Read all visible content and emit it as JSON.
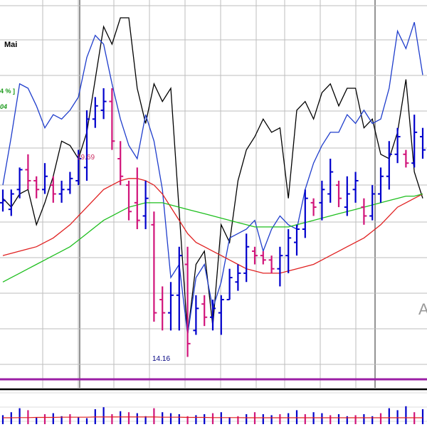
{
  "header": {
    "month_label": "Mai",
    "percent_fragment": "4 % ]",
    "value_fragment": "04",
    "watermark_fragment": "A"
  },
  "chart_data": {
    "type": "candlestick",
    "y_range": [
      13.2,
      21.2
    ],
    "x_range": [
      0,
      50
    ],
    "grid": true,
    "annotations": [
      {
        "text": "19.69",
        "x": 9.5,
        "y": 19.69,
        "color": "#cc3366"
      },
      {
        "text": "14.16",
        "x": 18.5,
        "y": 14.16,
        "color": "#000080"
      }
    ],
    "bars": [
      {
        "x": 0,
        "o": 17.0,
        "h": 17.3,
        "l": 16.8,
        "c": 17.05,
        "up": true
      },
      {
        "x": 1,
        "o": 16.85,
        "h": 17.3,
        "l": 16.7,
        "c": 17.2,
        "up": true
      },
      {
        "x": 2,
        "o": 17.3,
        "h": 17.8,
        "l": 17.1,
        "c": 17.75,
        "up": true
      },
      {
        "x": 3,
        "o": 17.75,
        "h": 18.1,
        "l": 17.3,
        "c": 17.5,
        "up": false
      },
      {
        "x": 4,
        "o": 17.5,
        "h": 17.6,
        "l": 17.1,
        "c": 17.3,
        "up": false
      },
      {
        "x": 5,
        "o": 17.3,
        "h": 17.9,
        "l": 17.2,
        "c": 17.6,
        "up": true
      },
      {
        "x": 6,
        "o": 17.4,
        "h": 17.6,
        "l": 17.0,
        "c": 17.2,
        "up": false
      },
      {
        "x": 7,
        "o": 17.2,
        "h": 17.5,
        "l": 17.0,
        "c": 17.3,
        "up": true
      },
      {
        "x": 8,
        "o": 17.3,
        "h": 17.7,
        "l": 17.2,
        "c": 17.55,
        "up": true
      },
      {
        "x": 9,
        "o": 17.5,
        "h": 18.2,
        "l": 17.4,
        "c": 18.0,
        "up": true
      },
      {
        "x": 10,
        "o": 17.8,
        "h": 19.1,
        "l": 17.5,
        "c": 18.9,
        "up": true
      },
      {
        "x": 11,
        "o": 18.9,
        "h": 19.4,
        "l": 18.7,
        "c": 19.2,
        "up": true
      },
      {
        "x": 12,
        "o": 19.1,
        "h": 19.6,
        "l": 18.9,
        "c": 19.3,
        "up": true
      },
      {
        "x": 13,
        "o": 19.3,
        "h": 19.6,
        "l": 18.2,
        "c": 18.4,
        "up": false
      },
      {
        "x": 14,
        "o": 18.0,
        "h": 18.4,
        "l": 17.4,
        "c": 17.6,
        "up": false
      },
      {
        "x": 15,
        "o": 17.4,
        "h": 17.5,
        "l": 16.6,
        "c": 16.8,
        "up": false
      },
      {
        "x": 16,
        "o": 17.0,
        "h": 17.8,
        "l": 16.4,
        "c": 16.6,
        "up": false
      },
      {
        "x": 17,
        "o": 16.7,
        "h": 17.5,
        "l": 16.4,
        "c": 17.1,
        "up": true
      },
      {
        "x": 18,
        "o": 16.5,
        "h": 16.8,
        "l": 14.3,
        "c": 14.5,
        "up": false
      },
      {
        "x": 19,
        "o": 14.8,
        "h": 15.1,
        "l": 14.1,
        "c": 14.5,
        "up": false
      },
      {
        "x": 20,
        "o": 14.5,
        "h": 15.2,
        "l": 14.1,
        "c": 14.9,
        "up": true
      },
      {
        "x": 21,
        "o": 14.9,
        "h": 16.0,
        "l": 14.1,
        "c": 15.8,
        "up": true
      },
      {
        "x": 22,
        "o": 15.6,
        "h": 16.0,
        "l": 13.5,
        "c": 13.8,
        "up": false
      },
      {
        "x": 23,
        "o": 14.1,
        "h": 14.9,
        "l": 14.0,
        "c": 14.6,
        "up": true
      },
      {
        "x": 24,
        "o": 14.7,
        "h": 14.9,
        "l": 14.2,
        "c": 14.4,
        "up": false
      },
      {
        "x": 25,
        "o": 14.4,
        "h": 14.8,
        "l": 14.1,
        "c": 14.6,
        "up": true
      },
      {
        "x": 26,
        "o": 14.5,
        "h": 14.9,
        "l": 14.0,
        "c": 14.8,
        "up": true
      },
      {
        "x": 27,
        "o": 14.8,
        "h": 15.5,
        "l": 14.8,
        "c": 15.3,
        "up": true
      },
      {
        "x": 28,
        "o": 15.2,
        "h": 15.6,
        "l": 15.0,
        "c": 15.4,
        "up": true
      },
      {
        "x": 29,
        "o": 15.4,
        "h": 16.3,
        "l": 15.2,
        "c": 16.0,
        "up": true
      },
      {
        "x": 30,
        "o": 15.9,
        "h": 16.0,
        "l": 15.6,
        "c": 15.8,
        "up": false
      },
      {
        "x": 31,
        "o": 15.8,
        "h": 15.9,
        "l": 15.6,
        "c": 15.7,
        "up": false
      },
      {
        "x": 32,
        "o": 15.7,
        "h": 15.8,
        "l": 15.4,
        "c": 15.5,
        "up": false
      },
      {
        "x": 33,
        "o": 15.5,
        "h": 16.0,
        "l": 15.1,
        "c": 15.8,
        "up": true
      },
      {
        "x": 34,
        "o": 15.8,
        "h": 16.4,
        "l": 15.4,
        "c": 16.2,
        "up": true
      },
      {
        "x": 35,
        "o": 16.1,
        "h": 16.5,
        "l": 15.8,
        "c": 16.4,
        "up": true
      },
      {
        "x": 36,
        "o": 16.4,
        "h": 17.3,
        "l": 16.2,
        "c": 17.1,
        "up": true
      },
      {
        "x": 37,
        "o": 17.0,
        "h": 17.1,
        "l": 16.7,
        "c": 16.9,
        "up": false
      },
      {
        "x": 38,
        "o": 17.0,
        "h": 17.5,
        "l": 16.6,
        "c": 17.3,
        "up": true
      },
      {
        "x": 39,
        "o": 17.2,
        "h": 18.0,
        "l": 17.0,
        "c": 17.7,
        "up": true
      },
      {
        "x": 40,
        "o": 17.4,
        "h": 17.5,
        "l": 16.9,
        "c": 17.1,
        "up": false
      },
      {
        "x": 41,
        "o": 16.9,
        "h": 17.6,
        "l": 16.7,
        "c": 17.2,
        "up": true
      },
      {
        "x": 42,
        "o": 17.3,
        "h": 17.7,
        "l": 17.0,
        "c": 17.5,
        "up": true
      },
      {
        "x": 43,
        "o": 16.9,
        "h": 17.1,
        "l": 16.5,
        "c": 16.7,
        "up": false
      },
      {
        "x": 44,
        "o": 16.7,
        "h": 17.4,
        "l": 16.6,
        "c": 17.2,
        "up": true
      },
      {
        "x": 45,
        "o": 17.2,
        "h": 17.8,
        "l": 17.0,
        "c": 17.6,
        "up": true
      },
      {
        "x": 46,
        "o": 17.6,
        "h": 18.4,
        "l": 17.3,
        "c": 18.1,
        "up": true
      },
      {
        "x": 47,
        "o": 18.1,
        "h": 18.7,
        "l": 17.9,
        "c": 18.5,
        "up": true
      },
      {
        "x": 48,
        "o": 18.1,
        "h": 18.2,
        "l": 17.8,
        "c": 17.9,
        "up": false
      },
      {
        "x": 49,
        "o": 17.9,
        "h": 19.0,
        "l": 17.8,
        "c": 18.6,
        "up": true
      },
      {
        "x": 50,
        "o": 18.5,
        "h": 18.7,
        "l": 18.0,
        "c": 18.2,
        "up": true
      }
    ],
    "series": [
      {
        "color": "#000000",
        "y": [
          17.1,
          16.9,
          17.2,
          17.3,
          16.5,
          17.0,
          17.6,
          18.4,
          18.3,
          18.0,
          18.6,
          19.8,
          21.0,
          20.6,
          21.2,
          21.2,
          19.6,
          18.8,
          19.7,
          19.3,
          19.6,
          16.8,
          14.0,
          15.6,
          15.9,
          14.2,
          16.5,
          16.1,
          17.5,
          18.2,
          18.5,
          18.9,
          18.6,
          18.7,
          17.1,
          19.1,
          19.3,
          18.9,
          19.5,
          19.7,
          19.2,
          19.6,
          19.6,
          18.7,
          18.9,
          18.1,
          18.0,
          18.6,
          19.8,
          17.7,
          17.1
        ]
      },
      {
        "color": "#1f3dcc",
        "y": [
          17.4,
          18.5,
          19.7,
          19.6,
          19.2,
          18.7,
          19.0,
          18.9,
          19.1,
          19.4,
          20.3,
          20.8,
          20.6,
          19.7,
          18.9,
          18.3,
          18.0,
          19.0,
          18.4,
          17.3,
          15.3,
          15.6,
          14.0,
          15.3,
          15.6,
          14.6,
          15.2,
          16.2,
          16.3,
          16.4,
          16.6,
          15.9,
          16.4,
          16.7,
          16.5,
          16.4,
          17.3,
          17.9,
          18.3,
          18.6,
          18.6,
          19.0,
          18.8,
          19.1,
          18.8,
          18.9,
          19.6,
          20.9,
          20.5,
          21.1,
          19.9
        ]
      },
      {
        "color": "#e02020",
        "y": [
          15.8,
          15.85,
          15.9,
          15.95,
          16.0,
          16.1,
          16.2,
          16.35,
          16.5,
          16.7,
          16.9,
          17.1,
          17.3,
          17.4,
          17.5,
          17.55,
          17.55,
          17.5,
          17.4,
          17.2,
          16.9,
          16.6,
          16.3,
          16.1,
          16.0,
          15.9,
          15.8,
          15.7,
          15.6,
          15.5,
          15.45,
          15.4,
          15.4,
          15.4,
          15.45,
          15.5,
          15.55,
          15.6,
          15.7,
          15.8,
          15.9,
          16.0,
          16.1,
          16.2,
          16.35,
          16.5,
          16.7,
          16.9,
          17.0,
          17.1,
          17.2
        ]
      },
      {
        "color": "#1fbf1f",
        "y": [
          15.2,
          15.3,
          15.4,
          15.5,
          15.6,
          15.7,
          15.8,
          15.9,
          16.0,
          16.15,
          16.3,
          16.45,
          16.6,
          16.7,
          16.8,
          16.9,
          16.95,
          17.0,
          17.0,
          17.0,
          16.95,
          16.9,
          16.85,
          16.8,
          16.75,
          16.7,
          16.65,
          16.6,
          16.55,
          16.5,
          16.45,
          16.45,
          16.45,
          16.45,
          16.45,
          16.5,
          16.55,
          16.6,
          16.65,
          16.7,
          16.75,
          16.8,
          16.85,
          16.9,
          16.95,
          17.0,
          17.05,
          17.1,
          17.15,
          17.15,
          17.2
        ]
      }
    ],
    "volume": [
      0.45,
      0.6,
      0.8,
      0.7,
      0.35,
      0.5,
      0.55,
      0.4,
      0.5,
      0.35,
      0.3,
      0.75,
      0.85,
      0.5,
      0.65,
      0.6,
      0.55,
      0.4,
      0.8,
      0.6,
      0.55,
      0.5,
      0.4,
      0.45,
      0.5,
      0.55,
      0.6,
      0.35,
      0.4,
      0.5,
      0.6,
      0.5,
      0.45,
      0.5,
      0.55,
      0.7,
      0.5,
      0.6,
      0.55,
      0.45,
      0.5,
      0.4,
      0.45,
      0.5,
      0.4,
      0.55,
      0.8,
      0.7,
      0.9,
      0.6,
      0.75
    ],
    "volume_up": [
      true,
      true,
      true,
      false,
      true,
      false,
      true,
      true,
      false,
      true,
      true,
      true,
      true,
      false,
      true,
      false,
      true,
      true,
      false,
      true,
      true,
      true,
      false,
      true,
      true,
      false,
      true,
      true,
      false,
      true,
      false,
      true,
      true,
      false,
      true,
      true,
      false,
      true,
      true,
      false,
      true,
      true,
      false,
      true,
      true,
      false,
      true,
      true,
      true,
      false,
      true
    ],
    "volume_avg": [
      0.32,
      0.32,
      0.33,
      0.33,
      0.34,
      0.34,
      0.34,
      0.35,
      0.35,
      0.35,
      0.35,
      0.36,
      0.36,
      0.36,
      0.36,
      0.36,
      0.36,
      0.36,
      0.36,
      0.35,
      0.35,
      0.35,
      0.34,
      0.34,
      0.34,
      0.33,
      0.33,
      0.33,
      0.33,
      0.32,
      0.32,
      0.32,
      0.32,
      0.32,
      0.32,
      0.32,
      0.32,
      0.32,
      0.32,
      0.32,
      0.32,
      0.32,
      0.32,
      0.32,
      0.32,
      0.32,
      0.32,
      0.32,
      0.32,
      0.32,
      0.32
    ]
  }
}
